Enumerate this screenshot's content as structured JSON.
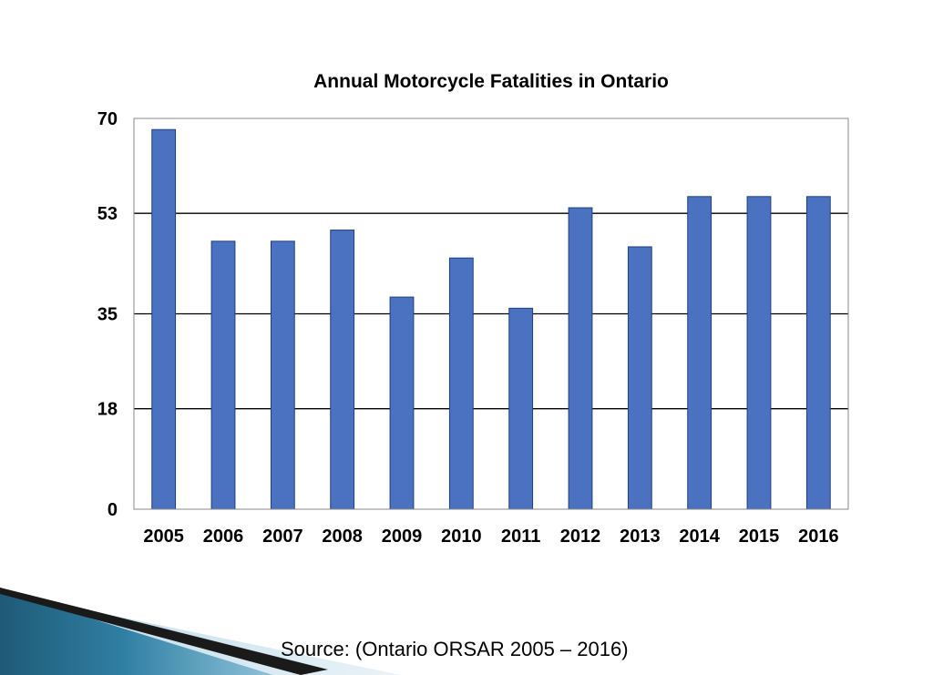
{
  "slide": {
    "source_text": "Source: (Ontario ORSAR 2005 – 2016)",
    "decor_colors": {
      "teal_dark": "#1f5a78",
      "teal_mid": "#2f7fa3",
      "teal_light": "#8fc3da",
      "dark": "#1a1a1a"
    }
  },
  "chart_data": {
    "type": "bar",
    "title": "Annual Motorcycle Fatalities in Ontario",
    "xlabel": "",
    "ylabel": "",
    "categories": [
      "2005",
      "2006",
      "2007",
      "2008",
      "2009",
      "2010",
      "2011",
      "2012",
      "2013",
      "2014",
      "2015",
      "2016"
    ],
    "values": [
      68,
      48,
      48,
      50,
      38,
      45,
      36,
      54,
      47,
      56,
      56,
      56
    ],
    "ylim": [
      0,
      70
    ],
    "yticks": [
      0,
      18,
      35,
      53,
      70
    ],
    "grid": true,
    "bar_color": "#4a72c0",
    "bar_edge_color": "#1f3f80",
    "gridline_color": "#000000"
  }
}
